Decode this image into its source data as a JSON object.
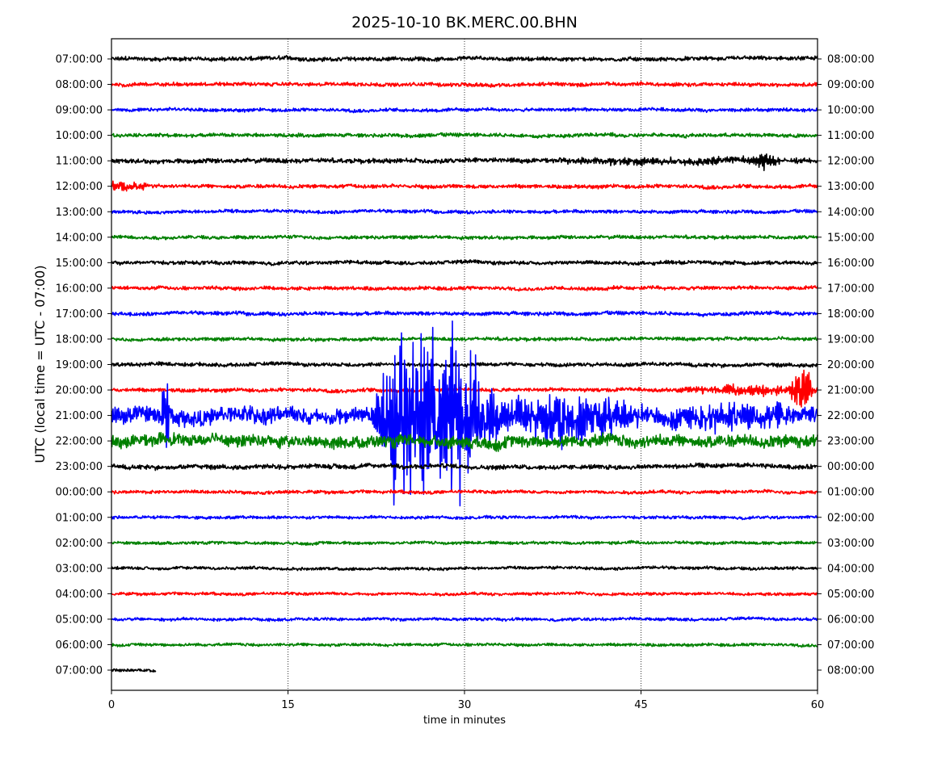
{
  "chart_data": {
    "type": "line",
    "subtype": "helicorder",
    "title": "2025-10-10 BK.MERC.00.BHN",
    "xlabel": "time in minutes",
    "ylabel": "UTC (local time = UTC - 07:00)",
    "xlim": [
      0,
      60
    ],
    "x_ticks": [
      "0",
      "15",
      "30",
      "45",
      "60"
    ],
    "grid": "vertical dotted at 15, 30, 45",
    "colors": [
      "#000000",
      "#ff0000",
      "#0000ff",
      "#008000"
    ],
    "left_labels": [
      "07:00:00",
      "08:00:00",
      "09:00:00",
      "10:00:00",
      "11:00:00",
      "12:00:00",
      "13:00:00",
      "14:00:00",
      "15:00:00",
      "16:00:00",
      "17:00:00",
      "18:00:00",
      "19:00:00",
      "20:00:00",
      "21:00:00",
      "22:00:00",
      "23:00:00",
      "00:00:00",
      "01:00:00",
      "02:00:00",
      "03:00:00",
      "04:00:00",
      "05:00:00",
      "06:00:00",
      "07:00:00"
    ],
    "right_labels": [
      "08:00:00",
      "09:00:00",
      "10:00:00",
      "11:00:00",
      "12:00:00",
      "13:00:00",
      "14:00:00",
      "15:00:00",
      "16:00:00",
      "17:00:00",
      "18:00:00",
      "19:00:00",
      "20:00:00",
      "21:00:00",
      "22:00:00",
      "23:00:00",
      "00:00:00",
      "01:00:00",
      "02:00:00",
      "03:00:00",
      "04:00:00",
      "05:00:00",
      "06:00:00",
      "07:00:00",
      "08:00:00"
    ],
    "amplitude_units": "relative",
    "base_noise": [
      2.2,
      2.0,
      1.8,
      2.0,
      2.4,
      2.0,
      1.8,
      1.8,
      2.0,
      2.0,
      2.0,
      1.8,
      2.0,
      2.0,
      9.0,
      6.5,
      2.4,
      1.8,
      1.6,
      1.6,
      1.6,
      1.6,
      1.6,
      1.6,
      1.6
    ],
    "last_row_end_minute": 3.8,
    "events": [
      {
        "row": 4,
        "start": 38,
        "end": 60,
        "amplitude": 4
      },
      {
        "row": 4,
        "start": 54.5,
        "end": 56.5,
        "amplitude": 9
      },
      {
        "row": 5,
        "start": 0,
        "end": 4,
        "amplitude": 10
      },
      {
        "row": 13,
        "start": 48,
        "end": 60,
        "amplitude": 7
      },
      {
        "row": 13,
        "start": 57.8,
        "end": 59.5,
        "amplitude": 30
      },
      {
        "row": 14,
        "start": 4.2,
        "end": 4.9,
        "amplitude": 70
      },
      {
        "row": 14,
        "start": 22,
        "end": 33,
        "amplitude": 115
      },
      {
        "row": 14,
        "start": 33,
        "end": 44,
        "amplitude": 35
      },
      {
        "row": 14,
        "start": 44,
        "end": 60,
        "amplitude": 13
      }
    ]
  }
}
